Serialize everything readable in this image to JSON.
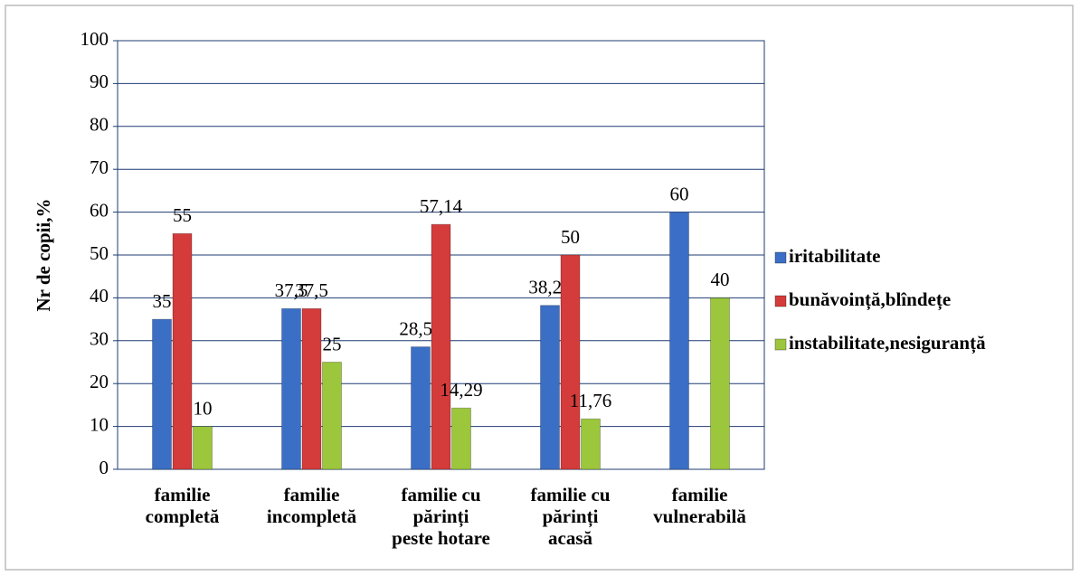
{
  "chart_data": {
    "type": "bar",
    "y_label": "Nr de copii,%",
    "categories": [
      [
        "familie",
        "completă"
      ],
      [
        "familie",
        "incompletă"
      ],
      [
        "familie cu",
        "părinți",
        "peste hotare"
      ],
      [
        "familie cu",
        "părinți",
        "acasă"
      ],
      [
        "familie",
        "vulnerabilă"
      ]
    ],
    "series": [
      {
        "name": "iritabilitate",
        "color": "#3b6fc6",
        "values": [
          35,
          37.5,
          28.57,
          38.24,
          60
        ],
        "value_labels": [
          "35",
          "37,5",
          "28,57",
          "38,24",
          "60"
        ]
      },
      {
        "name": "bunăvoință,blîndețe",
        "color": "#d43b3b",
        "values": [
          55,
          37.5,
          57.14,
          50,
          null
        ],
        "value_labels": [
          "55",
          "37,5",
          "57,14",
          "50",
          null
        ]
      },
      {
        "name": "instabilitate,nesiguranță",
        "color": "#9cc63c",
        "values": [
          10,
          25,
          14.29,
          11.76,
          40
        ],
        "value_labels": [
          "10",
          "25",
          "14,29",
          "11,76",
          "40"
        ]
      }
    ],
    "ylim": [
      0,
      100
    ],
    "yticks": [
      0,
      10,
      20,
      30,
      40,
      50,
      60,
      70,
      80,
      90,
      100
    ],
    "grid": true,
    "legend": "right"
  }
}
